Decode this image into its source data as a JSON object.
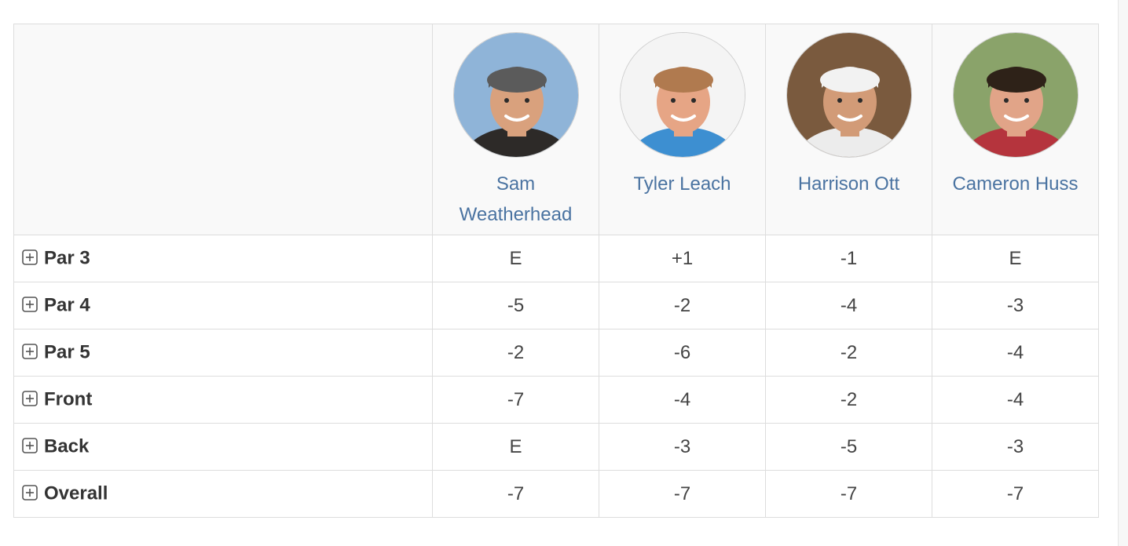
{
  "header": {
    "players": [
      {
        "name": "Sam Weatherhead",
        "avatar_icon": "player-photo-avatar",
        "bg": "#8fb4d8",
        "cap": "#5b5b5b",
        "skin": "#d9a17d",
        "shirt": "#2d2a28"
      },
      {
        "name": "Tyler Leach",
        "avatar_icon": "player-photo-avatar",
        "bg": "#f4f4f4",
        "cap": "#b07a4f",
        "skin": "#e6a585",
        "shirt": "#3d8fd1"
      },
      {
        "name": "Harrison Ott",
        "avatar_icon": "player-photo-avatar",
        "bg": "#7a5a3e",
        "cap": "#f2f2f2",
        "skin": "#d29b77",
        "shirt": "#ececec"
      },
      {
        "name": "Cameron Huss",
        "avatar_icon": "player-photo-avatar",
        "bg": "#8aa36a",
        "cap": "#2e2218",
        "skin": "#e1a488",
        "shirt": "#b5343d"
      }
    ]
  },
  "rows": [
    {
      "label": "Par 3",
      "icon": "expand-plus-icon",
      "scores": [
        "E",
        "+1",
        "-1",
        "E"
      ]
    },
    {
      "label": "Par 4",
      "icon": "expand-plus-icon",
      "scores": [
        "-5",
        "-2",
        "-4",
        "-3"
      ]
    },
    {
      "label": "Par 5",
      "icon": "expand-plus-icon",
      "scores": [
        "-2",
        "-6",
        "-2",
        "-4"
      ]
    },
    {
      "label": "Front",
      "icon": "expand-plus-icon",
      "scores": [
        "-7",
        "-4",
        "-2",
        "-4"
      ]
    },
    {
      "label": "Back",
      "icon": "expand-plus-icon",
      "scores": [
        "E",
        "-3",
        "-5",
        "-3"
      ]
    },
    {
      "label": "Overall",
      "icon": "expand-plus-icon",
      "scores": [
        "-7",
        "-7",
        "-7",
        "-7"
      ]
    }
  ],
  "colors": {
    "link": "#4a73a1",
    "border": "#dddddd",
    "header_bg": "#f9f9f9"
  }
}
